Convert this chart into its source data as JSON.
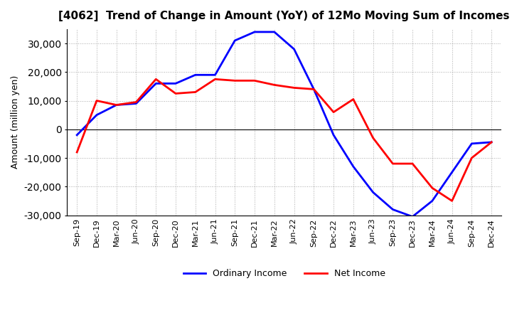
{
  "title": "[4062]  Trend of Change in Amount (YoY) of 12Mo Moving Sum of Incomes",
  "ylabel": "Amount (million yen)",
  "x_labels": [
    "Sep-19",
    "Dec-19",
    "Mar-20",
    "Jun-20",
    "Sep-20",
    "Dec-20",
    "Mar-21",
    "Jun-21",
    "Sep-21",
    "Dec-21",
    "Mar-22",
    "Jun-22",
    "Sep-22",
    "Dec-22",
    "Mar-23",
    "Jun-23",
    "Sep-23",
    "Dec-23",
    "Mar-24",
    "Jun-24",
    "Sep-24",
    "Dec-24"
  ],
  "ordinary_income": [
    -2000,
    5000,
    8500,
    9000,
    16000,
    16000,
    19000,
    19000,
    31000,
    34000,
    34000,
    28000,
    14000,
    -2000,
    -13000,
    -22000,
    -28000,
    -30500,
    -25000,
    -15000,
    -5000,
    -4500
  ],
  "net_income": [
    -8000,
    10000,
    8500,
    9500,
    17500,
    12500,
    13000,
    17500,
    17000,
    17000,
    15500,
    14500,
    14000,
    6000,
    10500,
    -3000,
    -12000,
    -12000,
    -20500,
    -25000,
    -10000,
    -4500
  ],
  "ordinary_color": "#0000FF",
  "net_color": "#FF0000",
  "ylim": [
    -30000,
    35000
  ],
  "yticks": [
    -30000,
    -20000,
    -10000,
    0,
    10000,
    20000,
    30000
  ],
  "background_color": "#FFFFFF",
  "grid_color": "#AAAAAA",
  "line_width": 2.0
}
